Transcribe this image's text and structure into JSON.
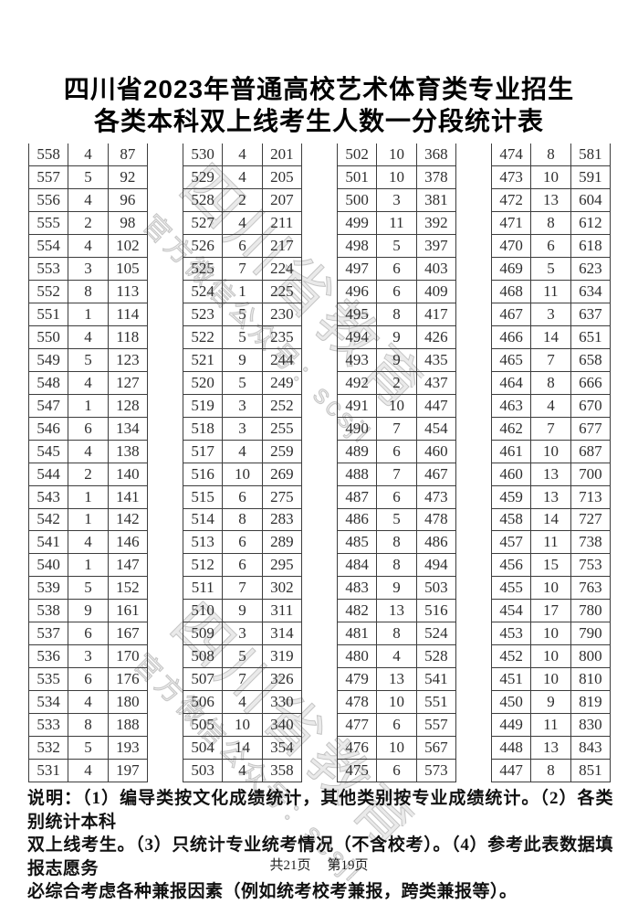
{
  "title": {
    "line1": "四川省2023年普通高校艺术体育类专业招生",
    "line2": "各类本科双上线考生人数一分段统计表"
  },
  "watermark": {
    "line1": "四川省教育考试院",
    "line2": "官方微信公众号：scsjksy"
  },
  "table": {
    "column_semantics": [
      "score",
      "count",
      "cumulative_count"
    ],
    "groups": [
      [
        [
          558,
          4,
          87
        ],
        [
          557,
          5,
          92
        ],
        [
          556,
          4,
          96
        ],
        [
          555,
          2,
          98
        ],
        [
          554,
          4,
          102
        ],
        [
          553,
          3,
          105
        ],
        [
          552,
          8,
          113
        ],
        [
          551,
          1,
          114
        ],
        [
          550,
          4,
          118
        ],
        [
          549,
          5,
          123
        ],
        [
          548,
          4,
          127
        ],
        [
          547,
          1,
          128
        ],
        [
          546,
          6,
          134
        ],
        [
          545,
          4,
          138
        ],
        [
          544,
          2,
          140
        ],
        [
          543,
          1,
          141
        ],
        [
          542,
          1,
          142
        ],
        [
          541,
          4,
          146
        ],
        [
          540,
          1,
          147
        ],
        [
          539,
          5,
          152
        ],
        [
          538,
          9,
          161
        ],
        [
          537,
          6,
          167
        ],
        [
          536,
          3,
          170
        ],
        [
          535,
          6,
          176
        ],
        [
          534,
          4,
          180
        ],
        [
          533,
          8,
          188
        ],
        [
          532,
          5,
          193
        ],
        [
          531,
          4,
          197
        ]
      ],
      [
        [
          530,
          4,
          201
        ],
        [
          529,
          4,
          205
        ],
        [
          528,
          2,
          207
        ],
        [
          527,
          4,
          211
        ],
        [
          526,
          6,
          217
        ],
        [
          525,
          7,
          224
        ],
        [
          524,
          1,
          225
        ],
        [
          523,
          5,
          230
        ],
        [
          522,
          5,
          235
        ],
        [
          521,
          9,
          244
        ],
        [
          520,
          5,
          249
        ],
        [
          519,
          3,
          252
        ],
        [
          518,
          3,
          255
        ],
        [
          517,
          4,
          259
        ],
        [
          516,
          10,
          269
        ],
        [
          515,
          6,
          275
        ],
        [
          514,
          8,
          283
        ],
        [
          513,
          6,
          289
        ],
        [
          512,
          6,
          295
        ],
        [
          511,
          7,
          302
        ],
        [
          510,
          9,
          311
        ],
        [
          509,
          3,
          314
        ],
        [
          508,
          5,
          319
        ],
        [
          507,
          7,
          326
        ],
        [
          506,
          4,
          330
        ],
        [
          505,
          10,
          340
        ],
        [
          504,
          14,
          354
        ],
        [
          503,
          4,
          358
        ]
      ],
      [
        [
          502,
          10,
          368
        ],
        [
          501,
          10,
          378
        ],
        [
          500,
          3,
          381
        ],
        [
          499,
          11,
          392
        ],
        [
          498,
          5,
          397
        ],
        [
          497,
          6,
          403
        ],
        [
          496,
          6,
          409
        ],
        [
          495,
          8,
          417
        ],
        [
          494,
          9,
          426
        ],
        [
          493,
          9,
          435
        ],
        [
          492,
          2,
          437
        ],
        [
          491,
          10,
          447
        ],
        [
          490,
          7,
          454
        ],
        [
          489,
          6,
          460
        ],
        [
          488,
          7,
          467
        ],
        [
          487,
          6,
          473
        ],
        [
          486,
          5,
          478
        ],
        [
          485,
          8,
          486
        ],
        [
          484,
          8,
          494
        ],
        [
          483,
          9,
          503
        ],
        [
          482,
          13,
          516
        ],
        [
          481,
          8,
          524
        ],
        [
          480,
          4,
          528
        ],
        [
          479,
          13,
          541
        ],
        [
          478,
          10,
          551
        ],
        [
          477,
          6,
          557
        ],
        [
          476,
          10,
          567
        ],
        [
          475,
          6,
          573
        ]
      ],
      [
        [
          474,
          8,
          581
        ],
        [
          473,
          10,
          591
        ],
        [
          472,
          13,
          604
        ],
        [
          471,
          8,
          612
        ],
        [
          470,
          6,
          618
        ],
        [
          469,
          5,
          623
        ],
        [
          468,
          11,
          634
        ],
        [
          467,
          3,
          637
        ],
        [
          466,
          14,
          651
        ],
        [
          465,
          7,
          658
        ],
        [
          464,
          8,
          666
        ],
        [
          463,
          4,
          670
        ],
        [
          462,
          7,
          677
        ],
        [
          461,
          10,
          687
        ],
        [
          460,
          13,
          700
        ],
        [
          459,
          13,
          713
        ],
        [
          458,
          14,
          727
        ],
        [
          457,
          11,
          738
        ],
        [
          456,
          15,
          753
        ],
        [
          455,
          10,
          763
        ],
        [
          454,
          17,
          780
        ],
        [
          453,
          10,
          790
        ],
        [
          452,
          10,
          800
        ],
        [
          451,
          10,
          810
        ],
        [
          450,
          9,
          819
        ],
        [
          449,
          11,
          830
        ],
        [
          448,
          13,
          843
        ],
        [
          447,
          8,
          851
        ]
      ]
    ]
  },
  "notes": {
    "lines": [
      "说明：（1）编导类按文化成绩统计，其他类别按专业成绩统计。（2）各类别统计本科",
      "双上线考生。（3）只统计专业统考情况（不含校考）。（4）参考此表数据填报志愿务",
      "必综合考虑各种兼报因素（例如统考校考兼报，跨类兼报等）。"
    ]
  },
  "footer": {
    "pages_total": "共21页",
    "page_current": "第19页"
  }
}
